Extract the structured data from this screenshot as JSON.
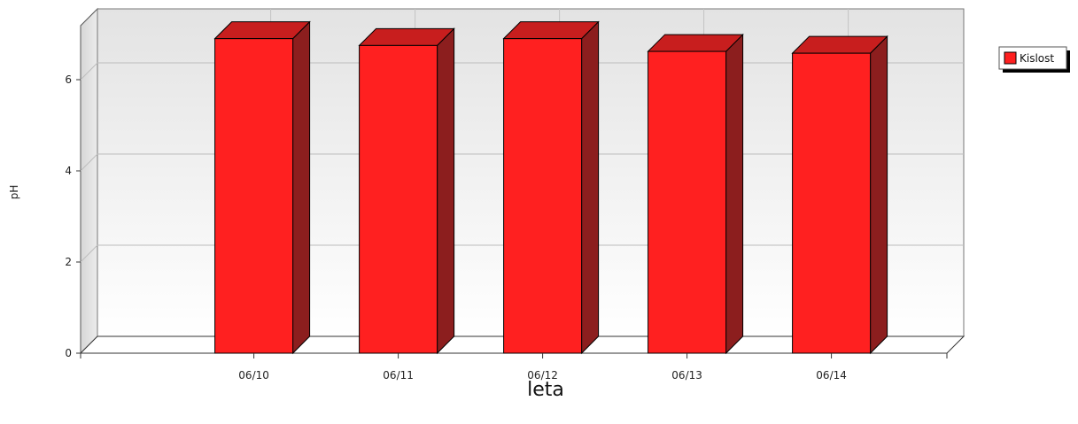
{
  "chart_data": {
    "type": "bar",
    "categories": [
      "06/10",
      "06/11",
      "06/12",
      "06/13",
      "06/14"
    ],
    "series": [
      {
        "name": "Kislost",
        "values": [
          6.9,
          6.75,
          6.9,
          6.62,
          6.58
        ]
      }
    ],
    "xlabel": "leta",
    "ylabel": "pH",
    "ylim": [
      0,
      7
    ],
    "yticks": [
      0,
      2,
      4,
      6
    ],
    "grid": true,
    "legend_position": "top-right",
    "three_d": true,
    "colors": {
      "bar_front": "#ff2020",
      "bar_top": "#c81e1e",
      "bar_side": "#8c1e1e",
      "legend_swatch": "#ff2020"
    }
  }
}
